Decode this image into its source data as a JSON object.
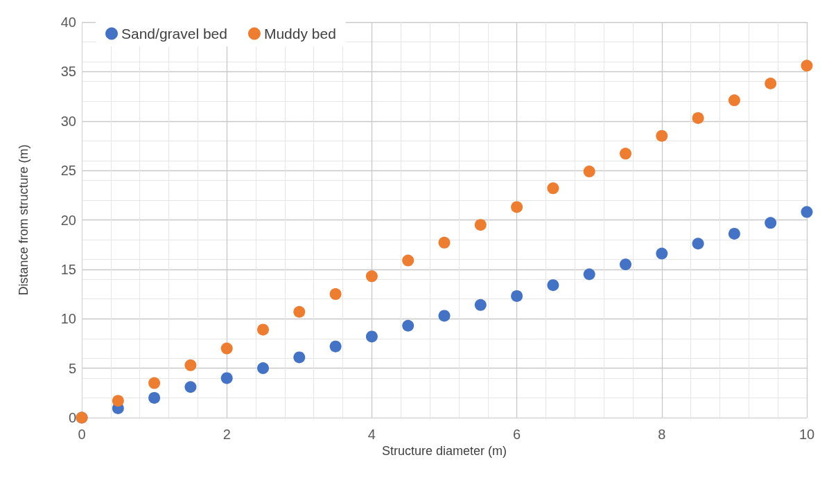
{
  "chart_data": {
    "type": "scatter",
    "xlabel": "Structure diameter (m)",
    "ylabel": "Distance from structure (m)",
    "x": [
      0,
      0.5,
      1,
      1.5,
      2,
      2.5,
      3,
      3.5,
      4,
      4.5,
      5,
      5.5,
      6,
      6.5,
      7,
      7.5,
      8,
      8.5,
      9,
      9.5,
      10
    ],
    "series": [
      {
        "name": "Sand/gravel bed",
        "color": "#4472c4",
        "values": [
          0,
          0.95,
          2.0,
          3.1,
          4.0,
          5.0,
          6.1,
          7.2,
          8.2,
          9.3,
          10.3,
          11.4,
          12.3,
          13.4,
          14.5,
          15.5,
          16.6,
          17.6,
          18.6,
          19.7,
          20.8
        ]
      },
      {
        "name": "Muddy bed",
        "color": "#ed7d31",
        "values": [
          0,
          1.7,
          3.5,
          5.3,
          7.0,
          8.9,
          10.7,
          12.5,
          14.3,
          15.9,
          17.7,
          19.5,
          21.3,
          23.2,
          24.9,
          26.7,
          28.5,
          30.3,
          32.1,
          33.8,
          35.6
        ]
      }
    ],
    "xlim": [
      0,
      10
    ],
    "xticks": [
      0,
      2,
      4,
      6,
      8,
      10
    ],
    "ylim": [
      0,
      40
    ],
    "yticks": [
      0,
      5,
      10,
      15,
      20,
      25,
      30,
      35,
      40
    ],
    "grid": true,
    "legend": "top left",
    "marker": "circle"
  }
}
